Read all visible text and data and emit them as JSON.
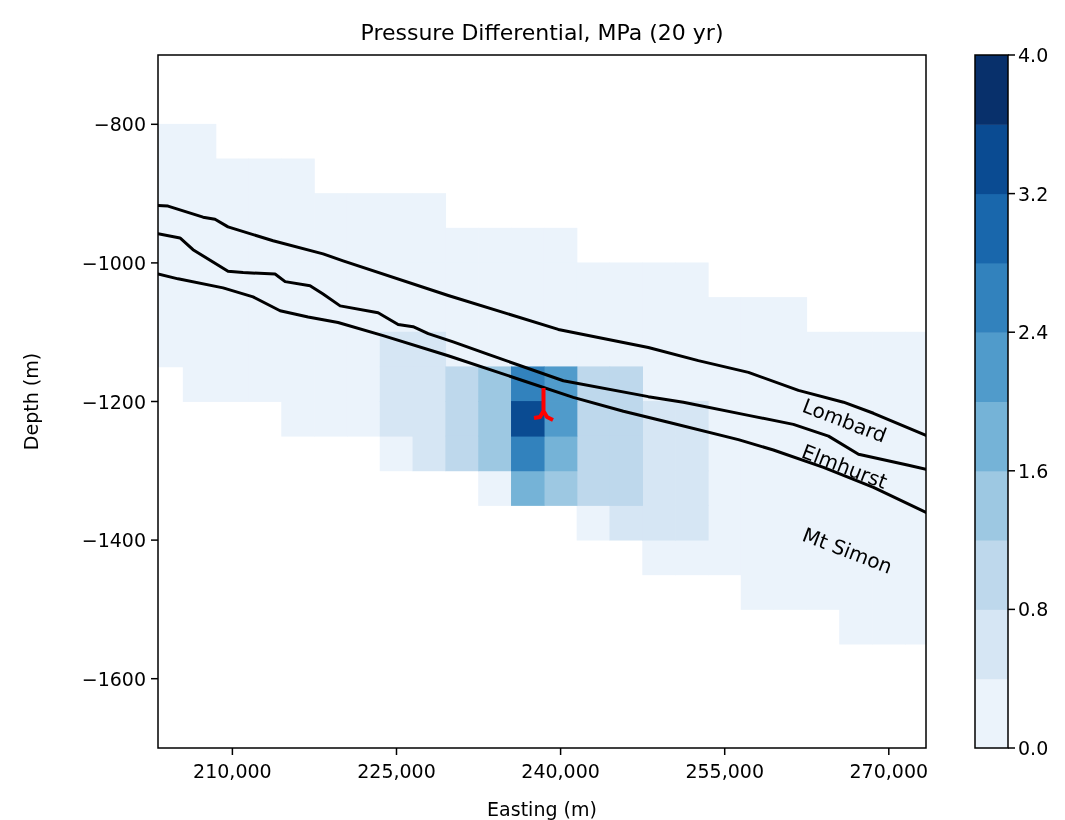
{
  "chart_data": {
    "type": "scatter",
    "title": "Pressure Differential, MPa (20 yr)",
    "xlabel": "Easting (m)",
    "ylabel": "Depth (m)",
    "marker": "square",
    "xlim": [
      203200,
      273400
    ],
    "xticks": [
      {
        "value": 210000,
        "label": "210,000"
      },
      {
        "value": 225000,
        "label": "225,000"
      },
      {
        "value": 240000,
        "label": "240,000"
      },
      {
        "value": 255000,
        "label": "255,000"
      },
      {
        "value": 270000,
        "label": "270,000"
      }
    ],
    "ylim": [
      -1700,
      -700
    ],
    "yticks": [
      {
        "value": -800,
        "label": "−800"
      },
      {
        "value": -1000,
        "label": "−1000"
      },
      {
        "value": -1200,
        "label": "−1200"
      },
      {
        "value": -1400,
        "label": "−1400"
      },
      {
        "value": -1600,
        "label": "−1600"
      }
    ],
    "clim": [
      0,
      4
    ],
    "cticks": [
      {
        "value": 0,
        "label": "0.0"
      },
      {
        "value": 0.8,
        "label": "0.8"
      },
      {
        "value": 1.6,
        "label": "1.6"
      },
      {
        "value": 2.4,
        "label": "2.4"
      },
      {
        "value": 3.2,
        "label": "3.2"
      },
      {
        "value": 4,
        "label": "4.0"
      }
    ],
    "series": [
      {
        "type": "scatter",
        "x": [
          204000,
          207000
        ],
        "values": [
          -825,
          -825
        ],
        "cvalues": [
          0.2,
          0.2
        ]
      },
      {
        "type": "scatter",
        "x": [
          204000,
          207000,
          210000,
          213000,
          216000
        ],
        "values": [
          -875,
          -875,
          -875,
          -875,
          -875
        ],
        "cvalues": [
          0.2,
          0.2,
          0.2,
          0.2,
          0.2
        ]
      },
      {
        "type": "scatter",
        "x": [
          204000,
          207000,
          210000,
          213000,
          216000,
          219000,
          222000,
          225000,
          228000
        ],
        "values": [
          -925,
          -925,
          -925,
          -925,
          -925,
          -925,
          -925,
          -925,
          -925
        ],
        "cvalues": [
          0.2,
          0.2,
          0.2,
          0.2,
          0.2,
          0.2,
          0.2,
          0.2,
          0.2
        ]
      },
      {
        "type": "scatter",
        "x": [
          204000,
          207000,
          210000,
          213000,
          216000,
          219000,
          222000,
          225000,
          228000,
          231000,
          234000,
          237000,
          240000
        ],
        "values": [
          -975,
          -975,
          -975,
          -975,
          -975,
          -975,
          -975,
          -975,
          -975,
          -975,
          -975,
          -975,
          -975
        ],
        "cvalues": [
          0.2,
          0.2,
          0.2,
          0.2,
          0.2,
          0.2,
          0.2,
          0.2,
          0.2,
          0.2,
          0.2,
          0.2,
          0.2
        ]
      },
      {
        "type": "scatter",
        "x": [
          204000,
          207000,
          210000,
          213000,
          216000,
          219000,
          222000,
          225000,
          228000,
          231000,
          234000,
          237000,
          240000,
          243000,
          246000,
          249000,
          252000
        ],
        "values": [
          -1025,
          -1025,
          -1025,
          -1025,
          -1025,
          -1025,
          -1025,
          -1025,
          -1025,
          -1025,
          -1025,
          -1025,
          -1025,
          -1025,
          -1025,
          -1025,
          -1025
        ],
        "cvalues": [
          0.2,
          0.2,
          0.2,
          0.2,
          0.2,
          0.2,
          0.2,
          0.2,
          0.2,
          0.2,
          0.2,
          0.2,
          0.2,
          0.2,
          0.2,
          0.2,
          0.2
        ]
      },
      {
        "type": "scatter",
        "x": [
          204000,
          207000,
          210000,
          213000,
          216000,
          219000,
          222000,
          225000,
          228000,
          231000,
          234000,
          237000,
          240000,
          243000,
          246000,
          249000,
          252000,
          255000,
          258000,
          261000
        ],
        "values": [
          -1075,
          -1075,
          -1075,
          -1075,
          -1075,
          -1075,
          -1075,
          -1075,
          -1075,
          -1075,
          -1075,
          -1075,
          -1075,
          -1075,
          -1075,
          -1075,
          -1075,
          -1075,
          -1075,
          -1075
        ],
        "cvalues": [
          0.2,
          0.2,
          0.2,
          0.2,
          0.2,
          0.2,
          0.2,
          0.2,
          0.2,
          0.2,
          0.2,
          0.2,
          0.2,
          0.2,
          0.2,
          0.2,
          0.2,
          0.2,
          0.2,
          0.2
        ]
      },
      {
        "type": "scatter",
        "x": [
          204000,
          207000,
          210000,
          213000,
          216000,
          219000,
          222000,
          231000,
          234000,
          237000,
          240000,
          243000,
          246000,
          249000,
          252000,
          255000,
          258000,
          261000,
          264000,
          267000,
          270000,
          273000
        ],
        "values": [
          -1125,
          -1125,
          -1125,
          -1125,
          -1125,
          -1125,
          -1125,
          -1125,
          -1125,
          -1125,
          -1125,
          -1125,
          -1125,
          -1125,
          -1125,
          -1125,
          -1125,
          -1125,
          -1125,
          -1125,
          -1125,
          -1125
        ],
        "cvalues": [
          0.2,
          0.2,
          0.2,
          0.2,
          0.2,
          0.2,
          0.2,
          0.2,
          0.2,
          0.2,
          0.2,
          0.2,
          0.2,
          0.2,
          0.2,
          0.2,
          0.2,
          0.2,
          0.2,
          0.2,
          0.2,
          0.2
        ]
      },
      {
        "type": "scatter",
        "x": [
          207000,
          210000,
          213000,
          216000,
          219000,
          222000,
          249000,
          252000,
          255000,
          258000,
          261000,
          264000,
          267000,
          270000,
          273000
        ],
        "values": [
          -1175,
          -1175,
          -1175,
          -1175,
          -1175,
          -1175,
          -1175,
          -1175,
          -1175,
          -1175,
          -1175,
          -1175,
          -1175,
          -1175,
          -1175
        ],
        "cvalues": [
          0.2,
          0.2,
          0.2,
          0.2,
          0.2,
          0.2,
          0.2,
          0.2,
          0.2,
          0.2,
          0.2,
          0.2,
          0.2,
          0.2,
          0.2
        ]
      },
      {
        "type": "scatter",
        "x": [
          216000,
          219000,
          222000,
          255000,
          258000,
          261000,
          264000,
          267000,
          270000,
          273000
        ],
        "values": [
          -1225,
          -1225,
          -1225,
          -1225,
          -1225,
          -1225,
          -1225,
          -1225,
          -1225,
          -1225
        ],
        "cvalues": [
          0.2,
          0.2,
          0.2,
          0.2,
          0.2,
          0.2,
          0.2,
          0.2,
          0.2,
          0.2
        ]
      },
      {
        "type": "scatter",
        "x": [
          225000,
          255000,
          258000,
          261000,
          264000,
          267000,
          270000,
          273000
        ],
        "values": [
          -1275,
          -1275,
          -1275,
          -1275,
          -1275,
          -1275,
          -1275,
          -1275
        ],
        "cvalues": [
          0.2,
          0.2,
          0.2,
          0.2,
          0.2,
          0.2,
          0.2,
          0.2
        ]
      },
      {
        "type": "scatter",
        "x": [
          234000,
          255000,
          258000,
          261000,
          264000,
          267000,
          270000,
          273000
        ],
        "values": [
          -1325,
          -1325,
          -1325,
          -1325,
          -1325,
          -1325,
          -1325,
          -1325
        ],
        "cvalues": [
          0.2,
          0.2,
          0.2,
          0.2,
          0.2,
          0.2,
          0.2,
          0.2
        ]
      },
      {
        "type": "scatter",
        "x": [
          243000,
          255000,
          258000,
          261000,
          264000,
          267000,
          270000,
          273000
        ],
        "values": [
          -1375,
          -1375,
          -1375,
          -1375,
          -1375,
          -1375,
          -1375,
          -1375
        ],
        "cvalues": [
          0.2,
          0.2,
          0.2,
          0.2,
          0.2,
          0.2,
          0.2,
          0.2
        ]
      },
      {
        "type": "scatter",
        "x": [
          249000,
          252000,
          255000,
          258000,
          261000,
          264000,
          267000,
          270000,
          273000
        ],
        "values": [
          -1425,
          -1425,
          -1425,
          -1425,
          -1425,
          -1425,
          -1425,
          -1425,
          -1425
        ],
        "cvalues": [
          0.2,
          0.2,
          0.2,
          0.2,
          0.2,
          0.2,
          0.2,
          0.2,
          0.2
        ]
      },
      {
        "type": "scatter",
        "x": [
          258000,
          261000,
          264000,
          267000,
          270000,
          273000
        ],
        "values": [
          -1475,
          -1475,
          -1475,
          -1475,
          -1475,
          -1475
        ],
        "cvalues": [
          0.2,
          0.2,
          0.2,
          0.2,
          0.2,
          0.2
        ]
      },
      {
        "type": "scatter",
        "x": [
          267000,
          270000,
          273000
        ],
        "values": [
          -1525,
          -1525,
          -1525
        ],
        "cvalues": [
          0.2,
          0.2,
          0.2
        ]
      },
      {
        "type": "scatter",
        "x": [
          225000,
          228000,
          225000,
          228000,
          225000,
          228000,
          249000,
          252000,
          228000,
          249000,
          252000,
          249000,
          252000,
          246000,
          249000,
          252000
        ],
        "values": [
          -1125,
          -1125,
          -1175,
          -1175,
          -1225,
          -1225,
          -1225,
          -1225,
          -1275,
          -1275,
          -1275,
          -1325,
          -1325,
          -1375,
          -1375,
          -1375
        ],
        "cvalues": [
          0.6,
          0.6,
          0.6,
          0.6,
          0.6,
          0.6,
          0.6,
          0.6,
          0.6,
          0.6,
          0.6,
          0.6,
          0.6,
          0.6,
          0.6,
          0.6
        ]
      },
      {
        "type": "scatter",
        "x": [
          231000,
          243000,
          246000,
          231000,
          243000,
          246000,
          231000,
          243000,
          246000,
          243000,
          246000
        ],
        "values": [
          -1175,
          -1175,
          -1175,
          -1225,
          -1225,
          -1225,
          -1275,
          -1275,
          -1275,
          -1325,
          -1325
        ],
        "cvalues": [
          1.0,
          1.0,
          1.0,
          1.0,
          1.0,
          1.0,
          1.0,
          1.0,
          1.0,
          1.0,
          1.0
        ]
      },
      {
        "type": "scatter",
        "x": [
          234000,
          234000,
          234000,
          240000
        ],
        "values": [
          -1175,
          -1225,
          -1275,
          -1325
        ],
        "cvalues": [
          1.4,
          1.4,
          1.4,
          1.4
        ]
      },
      {
        "type": "scatter",
        "x": [
          240000,
          237000
        ],
        "values": [
          -1275,
          -1325
        ],
        "cvalues": [
          1.8,
          1.8
        ]
      },
      {
        "type": "scatter",
        "x": [
          240000,
          240000
        ],
        "values": [
          -1175,
          -1225
        ],
        "cvalues": [
          2.2,
          2.2
        ]
      },
      {
        "type": "scatter",
        "x": [
          237000,
          237000
        ],
        "values": [
          -1175,
          -1275
        ],
        "cvalues": [
          2.6,
          2.6
        ]
      },
      {
        "type": "scatter",
        "x": [
          237000
        ],
        "values": [
          -1225
        ],
        "cvalues": [
          3.4
        ]
      },
      {
        "type": "line",
        "color": "#000000",
        "marker": "none",
        "x": [
          203200,
          204115,
          207320,
          208410,
          209600,
          213720,
          218290,
          220120,
          229730,
          239790,
          248020,
          252590,
          257170,
          261740,
          265860,
          268600,
          273400
        ],
        "values": [
          -917,
          -918,
          -934,
          -937,
          -948,
          -968,
          -987,
          -997,
          -1047,
          -1096,
          -1122,
          -1141,
          -1158,
          -1184,
          -1201,
          -1217,
          -1249
        ]
      },
      {
        "type": "line",
        "color": "#000000",
        "marker": "none",
        "x": [
          203200,
          205210,
          206400,
          209600,
          210980,
          213900,
          214820,
          217100,
          218290,
          219850,
          223320,
          225150,
          226520,
          227900,
          230180,
          233390,
          240250,
          248020,
          251220,
          257170,
          261280,
          264490,
          267230,
          271800,
          273400
        ],
        "values": [
          -958,
          -964,
          -981,
          -1012,
          -1014,
          -1016,
          -1027,
          -1033,
          -1045,
          -1062,
          -1072,
          -1089,
          -1092,
          -1102,
          -1114,
          -1132,
          -1170,
          -1193,
          -1201,
          -1220,
          -1233,
          -1250,
          -1276,
          -1292,
          -1298
        ]
      },
      {
        "type": "line",
        "color": "#000000",
        "marker": "none",
        "x": [
          203200,
          205030,
          209150,
          211890,
          214360,
          216920,
          219660,
          223780,
          229730,
          236590,
          241160,
          245740,
          249850,
          256250,
          259450,
          264030,
          268600,
          273400
        ],
        "values": [
          -1016,
          -1023,
          -1036,
          -1049,
          -1069,
          -1078,
          -1086,
          -1105,
          -1134,
          -1170,
          -1194,
          -1214,
          -1230,
          -1255,
          -1270,
          -1295,
          -1324,
          -1360
        ]
      }
    ],
    "annotations": [
      "Lombard",
      "Elmhurst",
      "Mt Simon"
    ]
  }
}
